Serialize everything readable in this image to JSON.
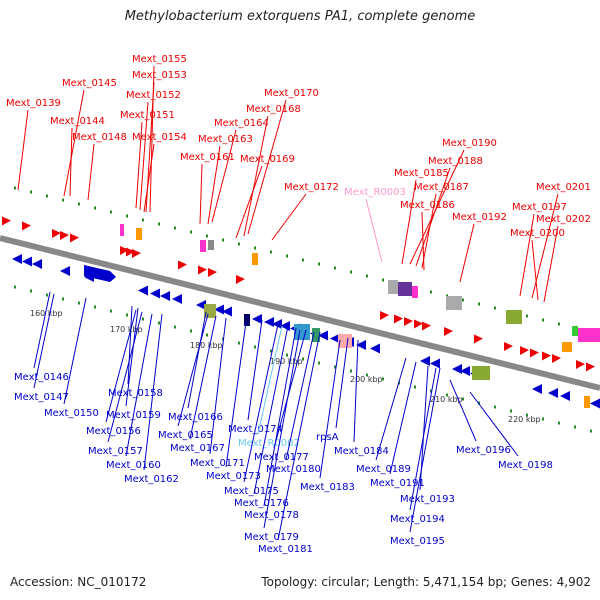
{
  "title": "Methylobacterium extorquens PA1, complete genome",
  "footer": {
    "accession": "Accession: NC_010172",
    "topology": "Topology: circular; Length: 5,471,154 bp; Genes: 4,902"
  },
  "colors": {
    "forward": "#ee0000",
    "reverse": "#0000cc",
    "rna": "#ff99cc",
    "rna_reverse": "#66ccee",
    "backbone": "#888888"
  },
  "kbp_ticks": [
    "160 kbp",
    "170 kbp",
    "180 kbp",
    "190 kbp",
    "200 kbp",
    "210 kbp",
    "220 kbp"
  ],
  "upper_labels": [
    "Mext_0139",
    "Mext_0145",
    "Mext_0144",
    "Mext_0148",
    "Mext_0155",
    "Mext_0153",
    "Mext_0152",
    "Mext_0151",
    "Mext_0154",
    "Mext_0164",
    "Mext_0163",
    "Mext_0161",
    "Mext_0170",
    "Mext_0168",
    "Mext_0169",
    "Mext_0172",
    "Mext_R0003",
    "Mext_0190",
    "Mext_0188",
    "Mext_0185",
    "Mext_0187",
    "Mext_0186",
    "Mext_0192",
    "Mext_0197",
    "Mext_0201",
    "Mext_0202",
    "Mext_0200"
  ],
  "lower_labels": [
    "Mext_0146",
    "Mext_0147",
    "Mext_0150",
    "Mext_0158",
    "Mext_0159",
    "Mext_0156",
    "Mext_0157",
    "Mext_0160",
    "Mext_0162",
    "Mext_0166",
    "Mext_0165",
    "Mext_0167",
    "Mext_0171",
    "Mext_0174",
    "Mext_R0002",
    "Mext_0173",
    "Mext_0177",
    "Mext_0175",
    "Mext_0180",
    "Mext_0176",
    "Mext_0178",
    "Mext_0179",
    "Mext_0181",
    "rpsA",
    "Mext_0184",
    "Mext_0183",
    "Mext_0189",
    "Mext_0191",
    "Mext_0193",
    "Mext_0194",
    "Mext_0195",
    "Mext_0196",
    "Mext_0198"
  ]
}
